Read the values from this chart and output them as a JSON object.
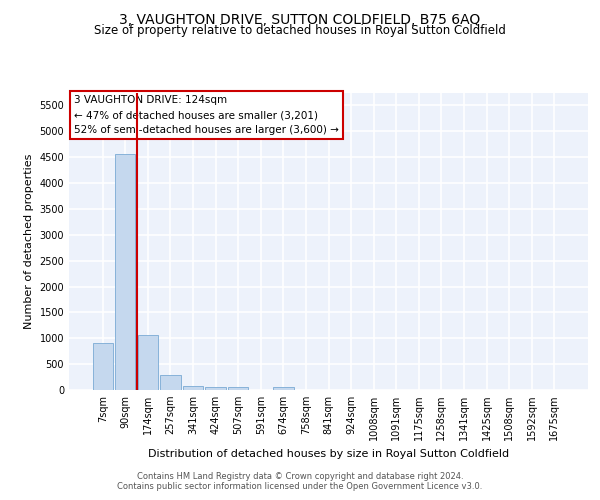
{
  "title": "3, VAUGHTON DRIVE, SUTTON COLDFIELD, B75 6AQ",
  "subtitle": "Size of property relative to detached houses in Royal Sutton Coldfield",
  "xlabel": "Distribution of detached houses by size in Royal Sutton Coldfield",
  "ylabel": "Number of detached properties",
  "bar_color": "#c5d8ee",
  "bar_edge_color": "#7aaad4",
  "property_line_color": "#cc0000",
  "annotation_text": "3 VAUGHTON DRIVE: 124sqm\n← 47% of detached houses are smaller (3,201)\n52% of semi-detached houses are larger (3,600) →",
  "annotation_box_color": "#ffffff",
  "annotation_box_edge": "#cc0000",
  "footer_line1": "Contains HM Land Registry data © Crown copyright and database right 2024.",
  "footer_line2": "Contains public sector information licensed under the Open Government Licence v3.0.",
  "categories": [
    "7sqm",
    "90sqm",
    "174sqm",
    "257sqm",
    "341sqm",
    "424sqm",
    "507sqm",
    "591sqm",
    "674sqm",
    "758sqm",
    "841sqm",
    "924sqm",
    "1008sqm",
    "1091sqm",
    "1175sqm",
    "1258sqm",
    "1341sqm",
    "1425sqm",
    "1508sqm",
    "1592sqm",
    "1675sqm"
  ],
  "values": [
    900,
    4560,
    1070,
    295,
    75,
    60,
    55,
    0,
    60,
    0,
    0,
    0,
    0,
    0,
    0,
    0,
    0,
    0,
    0,
    0,
    0
  ],
  "property_line_x": 1.5,
  "ylim": [
    0,
    5750
  ],
  "yticks": [
    0,
    500,
    1000,
    1500,
    2000,
    2500,
    3000,
    3500,
    4000,
    4500,
    5000,
    5500
  ],
  "background_color": "#edf2fb",
  "grid_color": "#ffffff",
  "title_fontsize": 10,
  "subtitle_fontsize": 8.5,
  "axis_label_fontsize": 8,
  "tick_fontsize": 7,
  "annotation_fontsize": 7.5
}
